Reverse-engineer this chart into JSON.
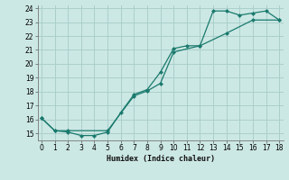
{
  "xlabel": "Humidex (Indice chaleur)",
  "background_color": "#cce8e4",
  "grid_color": "#aacfcb",
  "line_color": "#1a7a6e",
  "line1_x": [
    0,
    1,
    2,
    3,
    4,
    5,
    6,
    7,
    8,
    9,
    10,
    11,
    12,
    13,
    14,
    15,
    16,
    17,
    18
  ],
  "line1_y": [
    16.1,
    15.2,
    15.1,
    14.85,
    14.85,
    15.1,
    16.5,
    17.8,
    18.15,
    19.4,
    21.1,
    21.3,
    21.3,
    23.8,
    23.8,
    23.5,
    23.65,
    23.8,
    23.15
  ],
  "line2_x": [
    0,
    1,
    2,
    5,
    7,
    8,
    9,
    10,
    12,
    14,
    16,
    18
  ],
  "line2_y": [
    16.1,
    15.2,
    15.2,
    15.2,
    17.7,
    18.05,
    18.6,
    20.85,
    21.3,
    22.2,
    23.15,
    23.15
  ],
  "xlim": [
    0,
    18
  ],
  "ylim": [
    14.5,
    24.2
  ],
  "xticks": [
    0,
    1,
    2,
    3,
    4,
    5,
    6,
    7,
    8,
    9,
    10,
    11,
    12,
    13,
    14,
    15,
    16,
    17,
    18
  ],
  "yticks": [
    15,
    16,
    17,
    18,
    19,
    20,
    21,
    22,
    23,
    24
  ],
  "marker_size": 2.5
}
